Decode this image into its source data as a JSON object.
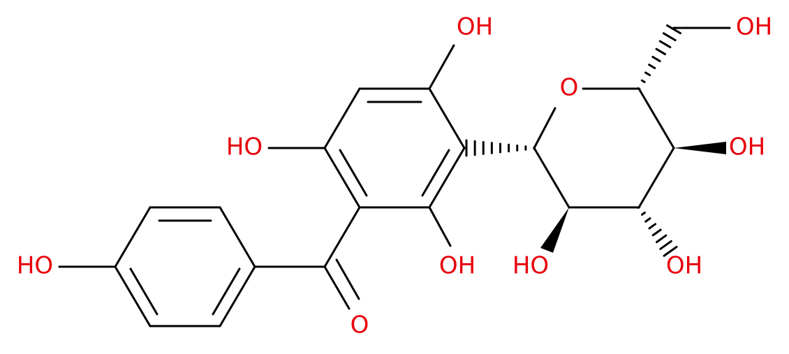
{
  "atoms": [
    {
      "label": "OH"
    },
    {
      "label": "OH"
    },
    {
      "label": "O"
    },
    {
      "label": "HO"
    },
    {
      "label": "OH"
    },
    {
      "label": "HO"
    },
    {
      "label": "OH"
    },
    {
      "label": "HO"
    },
    {
      "label": "OH"
    },
    {
      "label": "O"
    }
  ]
}
